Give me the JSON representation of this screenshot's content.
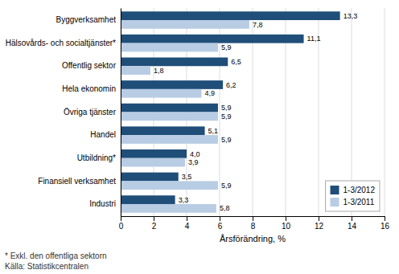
{
  "chart_data": {
    "type": "bar",
    "orientation": "horizontal",
    "categories": [
      "Byggverksamhet",
      "Hälsovårds- och socialtjänster*",
      "Offentlig sektor",
      "Hela ekonomin",
      "Övriga tjänster",
      "Handel",
      "Utbildning*",
      "Finansiell verksamhet",
      "Industri"
    ],
    "series": [
      {
        "name": "1-3/2012",
        "color": "#1F4E79",
        "values": [
          13.3,
          11.1,
          6.5,
          6.2,
          5.9,
          5.1,
          4.0,
          3.5,
          3.3
        ],
        "value_labels": [
          "13,3",
          "11,1",
          "6,5",
          "6,2",
          "5,9",
          "5,1",
          "4,0",
          "3,5",
          "3,3"
        ]
      },
      {
        "name": "1-3/2011",
        "color": "#B8CCE4",
        "values": [
          7.8,
          5.9,
          1.8,
          4.9,
          5.9,
          5.9,
          3.9,
          5.9,
          5.8
        ],
        "value_labels": [
          "7,8",
          "5,9",
          "1,8",
          "4,9",
          "5,9",
          "5,9",
          "3,9",
          "5,9",
          "5,8"
        ]
      }
    ],
    "xlabel": "Årsförändring, %",
    "xlim": [
      0,
      16
    ],
    "xticks": [
      0,
      2,
      4,
      6,
      8,
      10,
      12,
      14,
      16
    ],
    "grid": true,
    "legend": "lower right",
    "data_labels": true,
    "annotations": [
      "* Exkl. den offentliga sektorn",
      "Källa: Statistikcentralen"
    ]
  }
}
